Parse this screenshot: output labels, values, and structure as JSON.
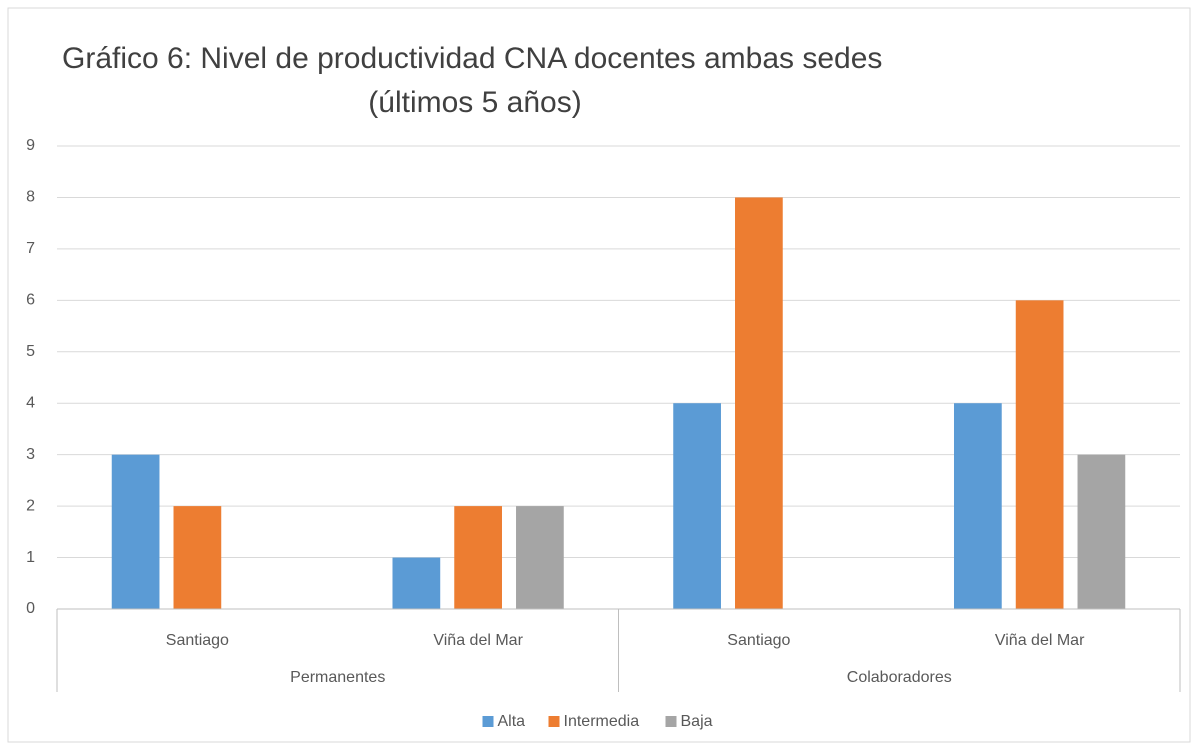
{
  "chart_data": {
    "type": "bar",
    "title": "Gráfico 6: Nivel de productividad CNA docentes ambas sedes",
    "subtitle": "(últimos 5 años)",
    "groups": [
      {
        "name": "Permanentes",
        "categories": [
          "Santiago",
          "Viña del Mar"
        ]
      },
      {
        "name": "Colaboradores",
        "categories": [
          "Santiago",
          "Viña del Mar"
        ]
      }
    ],
    "series": [
      {
        "name": "Alta",
        "color": "#5b9bd5",
        "values": [
          3,
          1,
          4,
          4
        ]
      },
      {
        "name": "Intermedia",
        "color": "#ed7d31",
        "values": [
          2,
          2,
          8,
          6
        ]
      },
      {
        "name": "Baja",
        "color": "#a5a5a5",
        "values": [
          0,
          2,
          0,
          3
        ]
      }
    ],
    "ylim": [
      0,
      9
    ],
    "yticks": [
      0,
      1,
      2,
      3,
      4,
      5,
      6,
      7,
      8,
      9
    ],
    "grid": true,
    "legend": "bottom"
  }
}
